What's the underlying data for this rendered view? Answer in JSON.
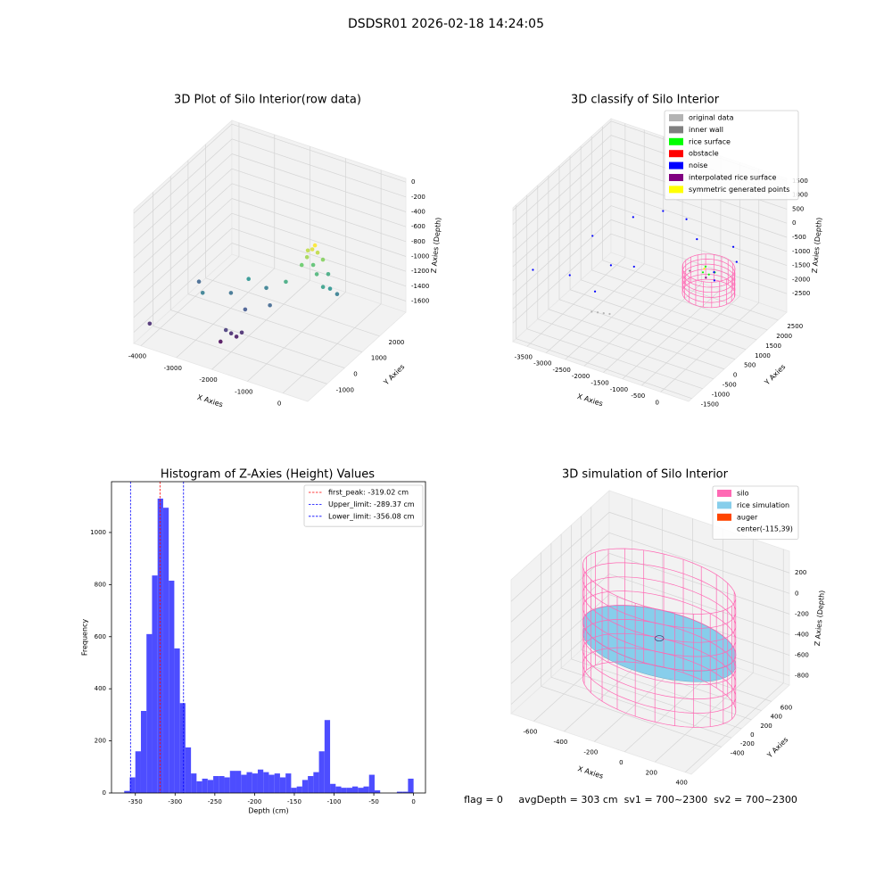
{
  "title": "DSDSR01 2026-02-18 14:24:05",
  "footer": "flag = 0     avgDepth = 303 cm  sv1 = 700~2300  sv2 = 700~2300",
  "chart_data": [
    {
      "type": "scatter3d",
      "title": "3D Plot of Silo Interior(row data)",
      "xlabel": "X Axies",
      "ylabel": "Y Axies",
      "zlabel": "Z Axies (Depth)",
      "xlim": [
        -4200,
        700
      ],
      "ylim": [
        -2100,
        3500
      ],
      "zlim": [
        -1750,
        50
      ],
      "xticks": [
        -4000,
        -3000,
        -2000,
        -1000,
        0
      ],
      "yticks": [
        -1000,
        0,
        1000,
        2000
      ],
      "zticks": [
        -1600,
        -1400,
        -1200,
        -1000,
        -800,
        -600,
        -400,
        -200,
        0
      ],
      "colormap": "viridis",
      "points": {
        "x": [
          -800,
          -700,
          -900,
          -600,
          -1000,
          -750,
          -850,
          -650,
          -500,
          -950,
          -300,
          -200,
          -400,
          -1800,
          -2200,
          -1500,
          -2500,
          -2000,
          -1200,
          -2000,
          -1900,
          -2100,
          -2200,
          -1800,
          -3900,
          -3500,
          -3000
        ],
        "y": [
          1200,
          1300,
          1100,
          1400,
          1000,
          1250,
          1350,
          1150,
          1500,
          1250,
          1200,
          1400,
          1000,
          600,
          400,
          200,
          0,
          -200,
          500,
          -1000,
          -900,
          -1100,
          -1200,
          -800,
          -1800,
          200,
          -600
        ],
        "z": [
          -650,
          -700,
          -750,
          -800,
          -850,
          -600,
          -900,
          -950,
          -1000,
          -700,
          -1100,
          -1200,
          -1050,
          -1200,
          -1100,
          -1300,
          -1250,
          -1350,
          -1000,
          -1500,
          -1550,
          -1450,
          -1600,
          -1500,
          -1500,
          -1300,
          -1200
        ]
      }
    },
    {
      "type": "scatter3d",
      "title": "3D classify of Silo Interior",
      "xlabel": "X Axies",
      "ylabel": "Y Axies",
      "zlabel": "Z Axies (Depth)",
      "xlim": [
        -3870,
        730
      ],
      "ylim": [
        -1650,
        2900
      ],
      "zlim": [
        -3160,
        1590
      ],
      "xticks": [
        -3500,
        -3000,
        -2500,
        -2000,
        -1500,
        -1000,
        -500,
        0
      ],
      "yticks": [
        -1500,
        -1000,
        -500,
        0,
        500,
        1000,
        1500,
        2000,
        2500
      ],
      "zticks": [
        -2500,
        -2000,
        -1500,
        -1000,
        -500,
        0,
        500,
        1000,
        1500
      ],
      "legend": "upper right",
      "silo": {
        "cx": -820,
        "cy": 2025,
        "radius": 600,
        "z": [
          -2600,
          -1700
        ],
        "color": "#ff69b4"
      },
      "series": [
        {
          "name": "original data",
          "color": "#b3b3b3",
          "x": [
            -2300,
            -2200,
            -2400,
            -2100
          ],
          "y": [
            -500,
            -400,
            -600,
            -300
          ],
          "z": [
            -2200,
            -2250,
            -2150,
            -2300
          ]
        },
        {
          "name": "inner wall",
          "color": "#808080",
          "x": [
            -1300
          ],
          "y": [
            2000
          ],
          "z": [
            -2000
          ]
        },
        {
          "name": "rice surface",
          "color": "#00ff00",
          "x": [
            -900,
            -700,
            -800,
            -1000
          ],
          "y": [
            1900,
            2100,
            2000,
            2200
          ],
          "z": [
            -1800,
            -1850,
            -1900,
            -1850
          ]
        },
        {
          "name": "obstacle",
          "color": "#ff0000",
          "x": [],
          "y": [],
          "z": []
        },
        {
          "name": "noise",
          "color": "#0000ff",
          "x": [
            -3600,
            -3000,
            -2500,
            -2000,
            -1500,
            -1000,
            -3200,
            -2200,
            -1800,
            -500,
            -300,
            -2800,
            -600,
            -750
          ],
          "y": [
            -1200,
            500,
            1500,
            2000,
            2200,
            1800,
            -200,
            -800,
            300,
            2600,
            2400,
            1000,
            1900,
            2150
          ],
          "z": [
            -800,
            -500,
            -300,
            -200,
            -400,
            -600,
            -1500,
            -1200,
            -900,
            -1200,
            -1500,
            -1800,
            -1950,
            -1900
          ]
        },
        {
          "name": "interpolated rice surface",
          "color": "#800080",
          "x": [
            -850
          ],
          "y": [
            1950
          ],
          "z": [
            -2000
          ]
        },
        {
          "name": "symmetric generated points",
          "color": "#ffff00",
          "x": [
            -950
          ],
          "y": [
            2050
          ],
          "z": [
            -1800
          ]
        }
      ]
    },
    {
      "type": "histogram",
      "title": "Histogram of Z-Axies (Height) Values",
      "xlabel": "Depth (cm)",
      "ylabel": "Frequency",
      "color": "#4d4dff",
      "bins": [
        -364,
        -357,
        -350,
        -343,
        -336,
        -329,
        -322,
        -315,
        -308,
        -301,
        -294,
        -287,
        -280,
        -273,
        -266,
        -259,
        -252,
        -245,
        -238,
        -231,
        -224,
        -217,
        -210,
        -203,
        -196,
        -189,
        -182,
        -175,
        -168,
        -161,
        -154,
        -147,
        -140,
        -133,
        -126,
        -119,
        -112,
        -105,
        -98,
        -91,
        -84,
        -77,
        -70,
        -63,
        -56,
        -49,
        -42,
        -35,
        -28,
        -21,
        -14,
        -7,
        0
      ],
      "counts": [
        8,
        60,
        160,
        315,
        610,
        835,
        1130,
        1095,
        815,
        555,
        345,
        175,
        75,
        45,
        55,
        50,
        65,
        65,
        60,
        85,
        85,
        70,
        80,
        75,
        90,
        80,
        70,
        75,
        60,
        75,
        20,
        25,
        50,
        65,
        80,
        160,
        280,
        35,
        25,
        20,
        20,
        25,
        20,
        25,
        70,
        10,
        0,
        0,
        0,
        5,
        5,
        55
      ],
      "xlim": [
        -380,
        15
      ],
      "ylim": [
        0,
        1195
      ],
      "xticks": [
        -350,
        -300,
        -250,
        -200,
        -150,
        -100,
        -50,
        0
      ],
      "yticks": [
        0,
        200,
        400,
        600,
        800,
        1000
      ],
      "legend": "upper right",
      "lines": [
        {
          "name": "first_peak: -319.02 cm",
          "value": -319.02,
          "color": "#ff0000"
        },
        {
          "name": "Upper_limit: -289.37 cm",
          "value": -289.37,
          "color": "#0000ff"
        },
        {
          "name": "Lower_limit: -356.08 cm",
          "value": -356.08,
          "color": "#0000ff"
        }
      ]
    },
    {
      "type": "silo3d",
      "title": "3D simulation of Silo Interior",
      "xlabel": "X Axies",
      "ylabel": "Y Axies",
      "zlabel": "Z Axies (Depth)",
      "xlim": [
        -750,
        440
      ],
      "ylim": [
        -1000,
        960
      ],
      "zlim": [
        -890,
        410
      ],
      "xticks": [
        -600,
        -400,
        -200,
        0,
        200,
        400
      ],
      "yticks": [
        -400,
        -200,
        0,
        200,
        400,
        600
      ],
      "zticks": [
        -800,
        -600,
        -400,
        -200,
        0,
        200
      ],
      "legend": "upper right",
      "silo": {
        "cx": -115,
        "cy": 39,
        "radius": 480,
        "z": [
          -850,
          250
        ]
      },
      "rice": {
        "z": -303
      },
      "series": [
        {
          "name": "silo",
          "color": "#ff69b4"
        },
        {
          "name": "rice simulation",
          "color": "#87ceeb"
        },
        {
          "name": "auger",
          "color": "#ff4500"
        },
        {
          "name": "center(-115,39)"
        }
      ]
    }
  ]
}
